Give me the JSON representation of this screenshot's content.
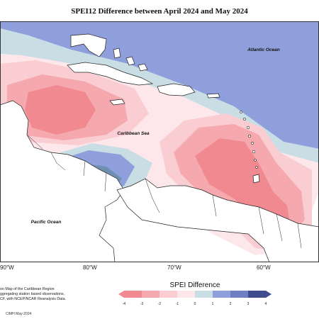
{
  "title": "SPEI12 Difference between April 2024 and May 2024",
  "labels": {
    "atlantic": "Atlantic Ocean",
    "caribbean": "Caribbean Sea",
    "pacific": "Pacific Ocean"
  },
  "longitude_ticks": [
    "90°W",
    "80°W",
    "70°W",
    "60°W"
  ],
  "credit_lines": [
    "on Map of the Caribbean Region",
    "ggregating station based observations,",
    "CF, with NCEP/NCAR Reanalysis Data."
  ],
  "footer": "CIMH May-2024",
  "legend": {
    "title": "SPEI Difference",
    "ticks": [
      "-4",
      "-3",
      "-2",
      "-1",
      "0",
      "1",
      "2",
      "3",
      "4"
    ],
    "colors": [
      "#f08a90",
      "#f5a9ae",
      "#f9cdd1",
      "#fde7ea",
      "#eef3f5",
      "#c9dde4",
      "#8e9fdc",
      "#6e7fc4",
      "#3f4d8c"
    ]
  },
  "palette": {
    "ocean_blue": "#8e9fdc",
    "light_blue": "#c9dde4",
    "pale_pink": "#fde7ea",
    "light_pink": "#f9cdd1",
    "pink": "#f5a9ae",
    "red": "#f08a90",
    "steel_blue": "#6e8fb0",
    "dark_blue": "#3f4d8c",
    "land": "#ffffff",
    "border": "#222222"
  }
}
